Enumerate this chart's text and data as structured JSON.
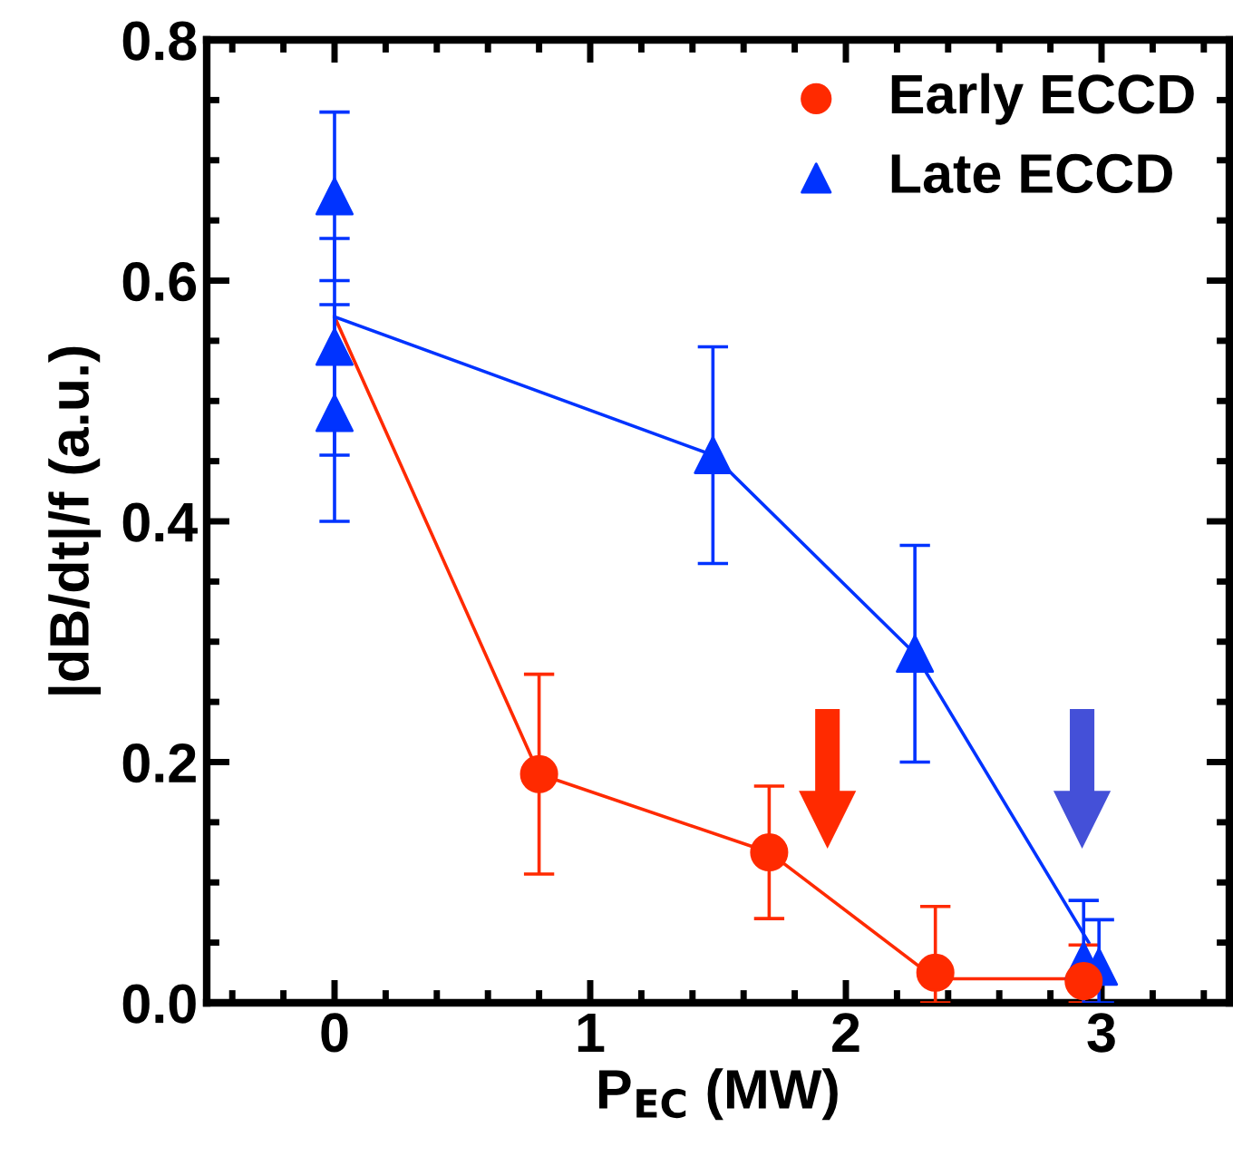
{
  "chart_data": {
    "type": "scatter",
    "xlabel": "P$_{EC}$ (MW)",
    "ylabel": "|dB/dt|/f (a.u.)",
    "xlim": [
      -0.5,
      3.5
    ],
    "ylim": [
      0,
      0.8
    ],
    "xticks": [
      0,
      1,
      2,
      3
    ],
    "yticks": [
      {
        "value": 0,
        "label": "0.0"
      },
      {
        "value": 0.2,
        "label": "0.2"
      },
      {
        "value": 0.4,
        "label": "0.4"
      },
      {
        "value": 0.6,
        "label": "0.6"
      },
      {
        "value": 0.8,
        "label": "0.8"
      }
    ],
    "legend": "top right",
    "grid": false,
    "series": [
      {
        "type": "line",
        "color": "#ff2a00",
        "marker": "none",
        "x": [
          0,
          0.8,
          1.7,
          2.35,
          2.93
        ],
        "values": [
          0.57,
          0.19,
          0.125,
          0.02,
          0.02
        ]
      },
      {
        "type": "line",
        "color": "#0033ff",
        "marker": "none",
        "x": [
          0,
          1.48,
          2.27,
          2.95
        ],
        "values": [
          0.57,
          0.455,
          0.29,
          0.05
        ]
      },
      {
        "name": "Early ECCD",
        "color": "#ff2a00",
        "marker": "circle",
        "x": [
          0.8,
          1.7,
          2.35,
          2.93
        ],
        "values": [
          0.19,
          0.125,
          0.025,
          0.018
        ],
        "errors": [
          0.083,
          0.055,
          [
            0,
            0.08
          ],
          [
            0,
            0.048
          ]
        ]
      },
      {
        "name": "Late ECCD",
        "color": "#0033ff",
        "marker": "triangle",
        "x": [
          0,
          0,
          0,
          1.48,
          2.27,
          2.93,
          2.99
        ],
        "values": [
          0.67,
          0.545,
          0.49,
          0.455,
          0.29,
          0.035,
          0.03
        ],
        "errors": [
          0.07,
          0.09,
          0.09,
          0.09,
          0.09,
          0.05,
          [
            0,
            0.069
          ]
        ]
      }
    ]
  }
}
